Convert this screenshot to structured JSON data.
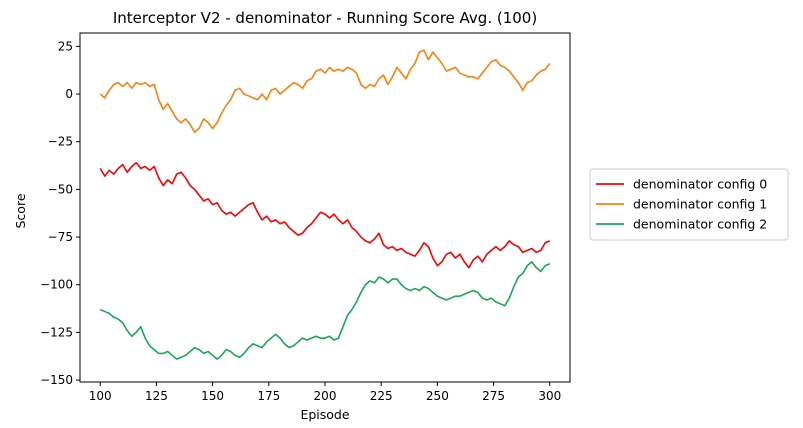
{
  "chart_data": {
    "type": "line",
    "title": "Interceptor V2 - denominator - Running Score Avg. (100)",
    "xlabel": "Episode",
    "ylabel": "Score",
    "xlim": [
      91,
      309
    ],
    "ylim": [
      -151,
      32
    ],
    "xticks": [
      100,
      125,
      150,
      175,
      200,
      225,
      250,
      275,
      300
    ],
    "yticks": [
      25,
      0,
      -25,
      -50,
      -75,
      -100,
      -125,
      -150
    ],
    "ytick_labels": [
      "25",
      "0",
      "−25",
      "−50",
      "−75",
      "−100",
      "−125",
      "−150"
    ],
    "grid": false,
    "legend_position": "outside-right",
    "series": [
      {
        "name": "denominator config 0",
        "color": "#ff0000",
        "points": [
          [
            100,
            -39
          ],
          [
            102,
            -43
          ],
          [
            104,
            -40
          ],
          [
            106,
            -42
          ],
          [
            108,
            -39
          ],
          [
            110,
            -37
          ],
          [
            112,
            -41
          ],
          [
            114,
            -38
          ],
          [
            116,
            -36
          ],
          [
            118,
            -39
          ],
          [
            120,
            -38
          ],
          [
            122,
            -40
          ],
          [
            124,
            -38
          ],
          [
            126,
            -44
          ],
          [
            128,
            -48
          ],
          [
            130,
            -45
          ],
          [
            132,
            -47
          ],
          [
            134,
            -42
          ],
          [
            136,
            -41
          ],
          [
            138,
            -44
          ],
          [
            140,
            -48
          ],
          [
            142,
            -50
          ],
          [
            144,
            -53
          ],
          [
            146,
            -56
          ],
          [
            148,
            -55
          ],
          [
            150,
            -58
          ],
          [
            152,
            -57
          ],
          [
            154,
            -61
          ],
          [
            156,
            -63
          ],
          [
            158,
            -62
          ],
          [
            160,
            -64
          ],
          [
            162,
            -62
          ],
          [
            164,
            -60
          ],
          [
            166,
            -58
          ],
          [
            168,
            -57
          ],
          [
            170,
            -62
          ],
          [
            172,
            -66
          ],
          [
            174,
            -64
          ],
          [
            176,
            -67
          ],
          [
            178,
            -66
          ],
          [
            180,
            -68
          ],
          [
            182,
            -67
          ],
          [
            184,
            -70
          ],
          [
            186,
            -72
          ],
          [
            188,
            -74
          ],
          [
            190,
            -73
          ],
          [
            192,
            -70
          ],
          [
            194,
            -68
          ],
          [
            196,
            -65
          ],
          [
            198,
            -62
          ],
          [
            200,
            -63
          ],
          [
            202,
            -65
          ],
          [
            204,
            -63
          ],
          [
            206,
            -66
          ],
          [
            208,
            -68
          ],
          [
            210,
            -66
          ],
          [
            212,
            -70
          ],
          [
            214,
            -72
          ],
          [
            216,
            -75
          ],
          [
            218,
            -77
          ],
          [
            220,
            -78
          ],
          [
            222,
            -76
          ],
          [
            224,
            -73
          ],
          [
            226,
            -79
          ],
          [
            228,
            -81
          ],
          [
            230,
            -80
          ],
          [
            232,
            -82
          ],
          [
            234,
            -81
          ],
          [
            236,
            -83
          ],
          [
            238,
            -84
          ],
          [
            240,
            -85
          ],
          [
            242,
            -82
          ],
          [
            244,
            -78
          ],
          [
            246,
            -80
          ],
          [
            248,
            -86
          ],
          [
            250,
            -90
          ],
          [
            252,
            -88
          ],
          [
            254,
            -84
          ],
          [
            256,
            -83
          ],
          [
            258,
            -86
          ],
          [
            260,
            -84
          ],
          [
            262,
            -88
          ],
          [
            264,
            -91
          ],
          [
            266,
            -87
          ],
          [
            268,
            -85
          ],
          [
            270,
            -88
          ],
          [
            272,
            -84
          ],
          [
            274,
            -82
          ],
          [
            276,
            -80
          ],
          [
            278,
            -82
          ],
          [
            280,
            -80
          ],
          [
            282,
            -77
          ],
          [
            284,
            -79
          ],
          [
            286,
            -80
          ],
          [
            288,
            -83
          ],
          [
            290,
            -82
          ],
          [
            292,
            -81
          ],
          [
            294,
            -83
          ],
          [
            296,
            -82
          ],
          [
            298,
            -78
          ],
          [
            300,
            -77
          ]
        ]
      },
      {
        "name": "denominator config 1",
        "color": "#ff7f0e",
        "points": [
          [
            100,
            0
          ],
          [
            102,
            -2
          ],
          [
            104,
            2
          ],
          [
            106,
            5
          ],
          [
            108,
            6
          ],
          [
            110,
            4
          ],
          [
            112,
            6
          ],
          [
            114,
            3
          ],
          [
            116,
            6
          ],
          [
            118,
            5
          ],
          [
            120,
            6
          ],
          [
            122,
            4
          ],
          [
            124,
            5
          ],
          [
            126,
            -3
          ],
          [
            128,
            -8
          ],
          [
            130,
            -5
          ],
          [
            132,
            -9
          ],
          [
            134,
            -13
          ],
          [
            136,
            -15
          ],
          [
            138,
            -13
          ],
          [
            140,
            -16
          ],
          [
            142,
            -20
          ],
          [
            144,
            -18
          ],
          [
            146,
            -13
          ],
          [
            148,
            -15
          ],
          [
            150,
            -18
          ],
          [
            152,
            -15
          ],
          [
            154,
            -10
          ],
          [
            156,
            -6
          ],
          [
            158,
            -3
          ],
          [
            160,
            2
          ],
          [
            162,
            3
          ],
          [
            164,
            0
          ],
          [
            166,
            -1
          ],
          [
            168,
            -2
          ],
          [
            170,
            -3
          ],
          [
            172,
            0
          ],
          [
            174,
            -3
          ],
          [
            176,
            2
          ],
          [
            178,
            3
          ],
          [
            180,
            0
          ],
          [
            182,
            2
          ],
          [
            184,
            4
          ],
          [
            186,
            6
          ],
          [
            188,
            5
          ],
          [
            190,
            3
          ],
          [
            192,
            7
          ],
          [
            194,
            8
          ],
          [
            196,
            12
          ],
          [
            198,
            13
          ],
          [
            200,
            11
          ],
          [
            202,
            14
          ],
          [
            204,
            12
          ],
          [
            206,
            13
          ],
          [
            208,
            12
          ],
          [
            210,
            14
          ],
          [
            212,
            13
          ],
          [
            214,
            11
          ],
          [
            216,
            5
          ],
          [
            218,
            3
          ],
          [
            220,
            5
          ],
          [
            222,
            4
          ],
          [
            224,
            8
          ],
          [
            226,
            10
          ],
          [
            228,
            5
          ],
          [
            230,
            9
          ],
          [
            232,
            14
          ],
          [
            234,
            11
          ],
          [
            236,
            8
          ],
          [
            238,
            13
          ],
          [
            240,
            16
          ],
          [
            242,
            22
          ],
          [
            244,
            23
          ],
          [
            246,
            18
          ],
          [
            248,
            22
          ],
          [
            250,
            19
          ],
          [
            252,
            16
          ],
          [
            254,
            12
          ],
          [
            256,
            13
          ],
          [
            258,
            14
          ],
          [
            260,
            11
          ],
          [
            262,
            10
          ],
          [
            264,
            9
          ],
          [
            266,
            9
          ],
          [
            268,
            8
          ],
          [
            270,
            11
          ],
          [
            272,
            14
          ],
          [
            274,
            17
          ],
          [
            276,
            18
          ],
          [
            278,
            15
          ],
          [
            280,
            14
          ],
          [
            282,
            12
          ],
          [
            284,
            9
          ],
          [
            286,
            6
          ],
          [
            288,
            2
          ],
          [
            290,
            6
          ],
          [
            292,
            7
          ],
          [
            294,
            10
          ],
          [
            296,
            12
          ],
          [
            298,
            13
          ],
          [
            300,
            16
          ]
        ]
      },
      {
        "name": "denominator config 2",
        "color": "#1aa85a",
        "points": [
          [
            100,
            -113
          ],
          [
            102,
            -114
          ],
          [
            104,
            -115
          ],
          [
            106,
            -117
          ],
          [
            108,
            -118
          ],
          [
            110,
            -120
          ],
          [
            112,
            -124
          ],
          [
            114,
            -127
          ],
          [
            116,
            -125
          ],
          [
            118,
            -122
          ],
          [
            120,
            -128
          ],
          [
            122,
            -132
          ],
          [
            124,
            -134
          ],
          [
            126,
            -136
          ],
          [
            128,
            -136
          ],
          [
            130,
            -135
          ],
          [
            132,
            -137
          ],
          [
            134,
            -139
          ],
          [
            136,
            -138
          ],
          [
            138,
            -137
          ],
          [
            140,
            -135
          ],
          [
            142,
            -133
          ],
          [
            144,
            -134
          ],
          [
            146,
            -136
          ],
          [
            148,
            -135
          ],
          [
            150,
            -137
          ],
          [
            152,
            -139
          ],
          [
            154,
            -137
          ],
          [
            156,
            -134
          ],
          [
            158,
            -135
          ],
          [
            160,
            -137
          ],
          [
            162,
            -138
          ],
          [
            164,
            -136
          ],
          [
            166,
            -133
          ],
          [
            168,
            -131
          ],
          [
            170,
            -132
          ],
          [
            172,
            -133
          ],
          [
            174,
            -130
          ],
          [
            176,
            -128
          ],
          [
            178,
            -126
          ],
          [
            180,
            -128
          ],
          [
            182,
            -131
          ],
          [
            184,
            -133
          ],
          [
            186,
            -132
          ],
          [
            188,
            -130
          ],
          [
            190,
            -128
          ],
          [
            192,
            -129
          ],
          [
            194,
            -128
          ],
          [
            196,
            -127
          ],
          [
            198,
            -128
          ],
          [
            200,
            -128
          ],
          [
            202,
            -127
          ],
          [
            204,
            -129
          ],
          [
            206,
            -128
          ],
          [
            208,
            -122
          ],
          [
            210,
            -116
          ],
          [
            212,
            -113
          ],
          [
            214,
            -109
          ],
          [
            216,
            -104
          ],
          [
            218,
            -100
          ],
          [
            220,
            -98
          ],
          [
            222,
            -99
          ],
          [
            224,
            -96
          ],
          [
            226,
            -97
          ],
          [
            228,
            -99
          ],
          [
            230,
            -97
          ],
          [
            232,
            -97
          ],
          [
            234,
            -100
          ],
          [
            236,
            -102
          ],
          [
            238,
            -103
          ],
          [
            240,
            -102
          ],
          [
            242,
            -103
          ],
          [
            244,
            -101
          ],
          [
            246,
            -102
          ],
          [
            248,
            -104
          ],
          [
            250,
            -106
          ],
          [
            252,
            -107
          ],
          [
            254,
            -108
          ],
          [
            256,
            -107
          ],
          [
            258,
            -106
          ],
          [
            260,
            -106
          ],
          [
            262,
            -105
          ],
          [
            264,
            -104
          ],
          [
            266,
            -103
          ],
          [
            268,
            -104
          ],
          [
            270,
            -107
          ],
          [
            272,
            -108
          ],
          [
            274,
            -107
          ],
          [
            276,
            -109
          ],
          [
            278,
            -110
          ],
          [
            280,
            -111
          ],
          [
            282,
            -107
          ],
          [
            284,
            -101
          ],
          [
            286,
            -96
          ],
          [
            288,
            -94
          ],
          [
            290,
            -90
          ],
          [
            292,
            -88
          ],
          [
            294,
            -91
          ],
          [
            296,
            -93
          ],
          [
            298,
            -90
          ],
          [
            300,
            -89
          ]
        ]
      }
    ]
  }
}
